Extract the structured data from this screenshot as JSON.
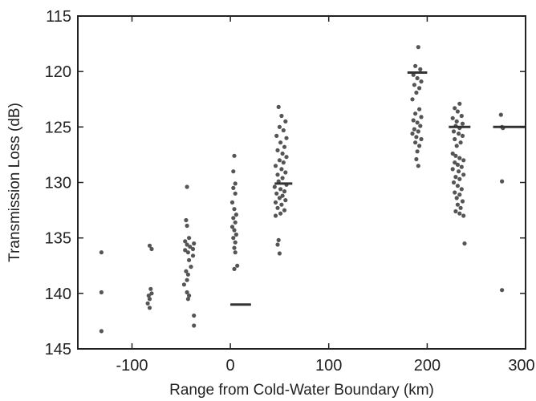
{
  "chart_data": {
    "type": "scatter",
    "title": "",
    "xlabel": "Range from Cold-Water Boundary (km)",
    "ylabel": "Transmission Loss (dB)",
    "xlim": [
      -155,
      300
    ],
    "ylim": [
      145,
      115
    ],
    "y_inverted": true,
    "grid": false,
    "xticks": [
      -100,
      0,
      100,
      200,
      300
    ],
    "xtick_labels": [
      "-100",
      "0",
      "100",
      "200",
      "300"
    ],
    "yticks": [
      115,
      120,
      125,
      130,
      135,
      140,
      145
    ],
    "ytick_labels": [
      "115",
      "120",
      "125",
      "130",
      "135",
      "140",
      "145"
    ],
    "colors": {
      "points": "#555555",
      "mean_bars": "#333333",
      "axes": "#222222"
    },
    "series": [
      {
        "points": [
          [
            -131,
            136.3
          ],
          [
            -131,
            139.9
          ],
          [
            -131,
            143.4
          ],
          [
            -82,
            135.7
          ],
          [
            -80,
            136.0
          ],
          [
            -81,
            139.6
          ],
          [
            -80,
            140.0
          ],
          [
            -83,
            140.2
          ],
          [
            -82,
            140.5
          ],
          [
            -84,
            140.9
          ],
          [
            -82,
            141.3
          ],
          [
            -45,
            133.4
          ],
          [
            -44,
            133.9
          ],
          [
            -42,
            135.0
          ],
          [
            -46,
            135.3
          ],
          [
            -44,
            135.6
          ],
          [
            -41,
            135.8
          ],
          [
            -37,
            135.5
          ],
          [
            -38,
            136.0
          ],
          [
            -46,
            136.1
          ],
          [
            -43,
            136.3
          ],
          [
            -38,
            136.6
          ],
          [
            -42,
            137.0
          ],
          [
            -45,
            138.0
          ],
          [
            -43,
            138.3
          ],
          [
            -44,
            138.8
          ],
          [
            -47,
            139.2
          ],
          [
            -44,
            139.9
          ],
          [
            -42,
            140.2
          ],
          [
            -43,
            140.5
          ],
          [
            -44,
            130.4
          ],
          [
            -37,
            142.0
          ],
          [
            -37,
            142.9
          ],
          [
            -40,
            137.6
          ],
          [
            4,
            127.6
          ],
          [
            3,
            129.0
          ],
          [
            5,
            130.1
          ],
          [
            3,
            130.5
          ],
          [
            5,
            131.0
          ],
          [
            2,
            131.8
          ],
          [
            4,
            132.4
          ],
          [
            6,
            132.9
          ],
          [
            3,
            133.2
          ],
          [
            5,
            133.6
          ],
          [
            2,
            134.0
          ],
          [
            4,
            134.3
          ],
          [
            6,
            134.7
          ],
          [
            3,
            135.0
          ],
          [
            5,
            135.4
          ],
          [
            4,
            135.9
          ],
          [
            5,
            136.3
          ],
          [
            7,
            137.5
          ],
          [
            4,
            137.8
          ],
          [
            49,
            123.2
          ],
          [
            52,
            124.0
          ],
          [
            56,
            124.5
          ],
          [
            50,
            125.0
          ],
          [
            54,
            125.3
          ],
          [
            47,
            125.8
          ],
          [
            57,
            126.0
          ],
          [
            51,
            126.4
          ],
          [
            55,
            126.8
          ],
          [
            48,
            127.1
          ],
          [
            53,
            127.4
          ],
          [
            57,
            127.7
          ],
          [
            50,
            128.0
          ],
          [
            54,
            128.2
          ],
          [
            46,
            128.5
          ],
          [
            52,
            128.8
          ],
          [
            56,
            129.1
          ],
          [
            48,
            129.3
          ],
          [
            53,
            129.6
          ],
          [
            49,
            129.9
          ],
          [
            57,
            130.2
          ],
          [
            45,
            130.4
          ],
          [
            51,
            130.6
          ],
          [
            55,
            130.8
          ],
          [
            47,
            131.0
          ],
          [
            53,
            131.2
          ],
          [
            50,
            131.4
          ],
          [
            56,
            131.6
          ],
          [
            46,
            131.8
          ],
          [
            52,
            132.0
          ],
          [
            48,
            132.3
          ],
          [
            55,
            132.5
          ],
          [
            51,
            132.8
          ],
          [
            46,
            133.0
          ],
          [
            49,
            135.2
          ],
          [
            48,
            135.6
          ],
          [
            50,
            136.4
          ],
          [
            191,
            117.8
          ],
          [
            188,
            119.5
          ],
          [
            193,
            119.8
          ],
          [
            186,
            120.3
          ],
          [
            190,
            120.6
          ],
          [
            194,
            120.9
          ],
          [
            187,
            121.2
          ],
          [
            192,
            121.5
          ],
          [
            189,
            121.9
          ],
          [
            185,
            122.5
          ],
          [
            192,
            123.4
          ],
          [
            188,
            123.8
          ],
          [
            194,
            124.1
          ],
          [
            186,
            124.4
          ],
          [
            190,
            124.6
          ],
          [
            193,
            124.9
          ],
          [
            187,
            125.2
          ],
          [
            191,
            125.4
          ],
          [
            185,
            125.6
          ],
          [
            189,
            125.9
          ],
          [
            194,
            126.1
          ],
          [
            188,
            126.4
          ],
          [
            192,
            126.7
          ],
          [
            190,
            127.2
          ],
          [
            189,
            127.9
          ],
          [
            191,
            128.5
          ],
          [
            233,
            122.9
          ],
          [
            228,
            123.3
          ],
          [
            231,
            123.6
          ],
          [
            235,
            124.0
          ],
          [
            226,
            124.2
          ],
          [
            230,
            124.5
          ],
          [
            236,
            124.7
          ],
          [
            229,
            124.9
          ],
          [
            233,
            125.1
          ],
          [
            227,
            125.4
          ],
          [
            232,
            125.6
          ],
          [
            236,
            125.8
          ],
          [
            228,
            126.1
          ],
          [
            234,
            126.4
          ],
          [
            230,
            126.7
          ],
          [
            226,
            127.4
          ],
          [
            229,
            127.6
          ],
          [
            233,
            127.8
          ],
          [
            237,
            128.0
          ],
          [
            228,
            128.2
          ],
          [
            231,
            128.4
          ],
          [
            235,
            128.6
          ],
          [
            226,
            128.8
          ],
          [
            232,
            129.0
          ],
          [
            237,
            129.3
          ],
          [
            229,
            129.5
          ],
          [
            233,
            129.7
          ],
          [
            227,
            130.0
          ],
          [
            231,
            130.3
          ],
          [
            235,
            130.6
          ],
          [
            228,
            130.9
          ],
          [
            233,
            131.1
          ],
          [
            230,
            131.4
          ],
          [
            236,
            131.7
          ],
          [
            231,
            132.0
          ],
          [
            234,
            132.3
          ],
          [
            229,
            132.6
          ],
          [
            233,
            132.8
          ],
          [
            237,
            133.0
          ],
          [
            238,
            135.5
          ]
        ]
      },
      {
        "points": [
          [
            275,
            123.9
          ],
          [
            276,
            125.0
          ],
          [
            277,
            125.1
          ],
          [
            276,
            129.9
          ],
          [
            276,
            139.7
          ]
        ]
      }
    ],
    "mean_bars": [
      {
        "x_range": [
          0,
          21
        ],
        "y": 141.0
      },
      {
        "x_range": [
          45,
          63
        ],
        "y": 130.1
      },
      {
        "x_range": [
          180,
          200
        ],
        "y": 120.1
      },
      {
        "x_range": [
          222,
          244
        ],
        "y": 125.0
      },
      {
        "x_range": [
          267,
          300
        ],
        "y": 125.0
      }
    ]
  }
}
